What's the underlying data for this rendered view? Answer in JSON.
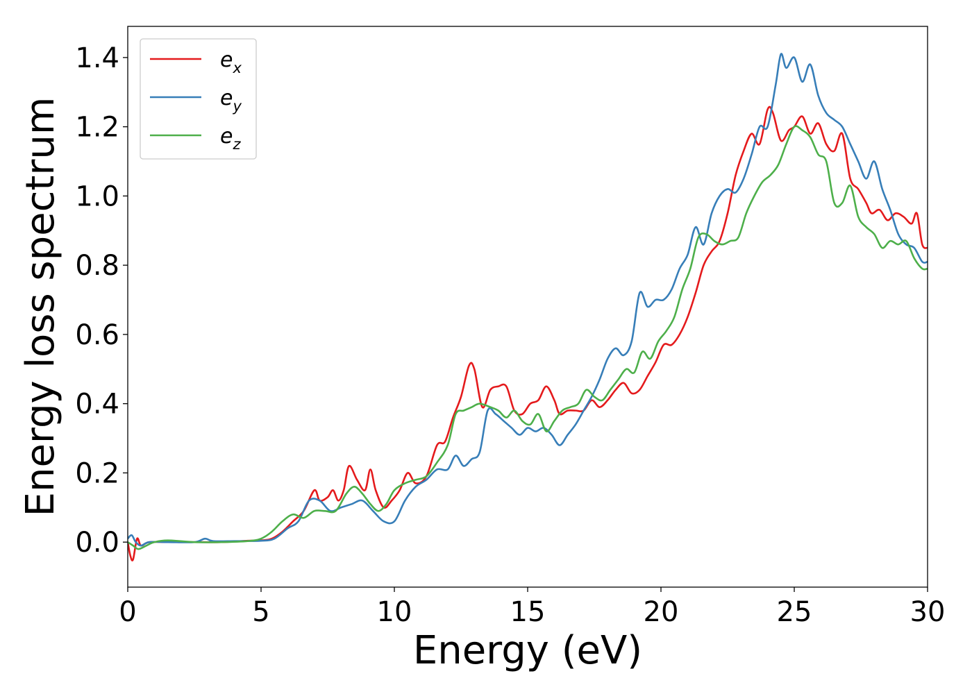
{
  "chart_data": {
    "type": "line",
    "title": "",
    "xlabel": "Energy (eV)",
    "ylabel": "Energy loss spectrum",
    "xlim": [
      0,
      30
    ],
    "ylim": [
      -0.13,
      1.49
    ],
    "xticks": [
      0,
      5,
      10,
      15,
      20,
      25,
      30
    ],
    "xtick_labels": [
      "0",
      "5",
      "10",
      "15",
      "20",
      "25",
      "30"
    ],
    "yticks": [
      0.0,
      0.2,
      0.4,
      0.6,
      0.8,
      1.0,
      1.2,
      1.4
    ],
    "ytick_labels": [
      "0.0",
      "0.2",
      "0.4",
      "0.6",
      "0.8",
      "1.0",
      "1.2",
      "1.4"
    ],
    "grid": false,
    "legend_position": "top-left",
    "series": [
      {
        "name": "e_x",
        "label_main": "e",
        "label_sub": "x",
        "color": "#e41a1c",
        "points": [
          [
            0,
            0.0
          ],
          [
            0.1,
            -0.04
          ],
          [
            0.2,
            -0.05
          ],
          [
            0.35,
            0.01
          ],
          [
            0.5,
            -0.01
          ],
          [
            0.8,
            0.0
          ],
          [
            1.5,
            0.0
          ],
          [
            2.5,
            0.0
          ],
          [
            3.5,
            0.0
          ],
          [
            4.5,
            0.004
          ],
          [
            5.0,
            0.005
          ],
          [
            5.4,
            0.01
          ],
          [
            5.8,
            0.03
          ],
          [
            6.2,
            0.06
          ],
          [
            6.6,
            0.09
          ],
          [
            7.0,
            0.15
          ],
          [
            7.2,
            0.12
          ],
          [
            7.5,
            0.13
          ],
          [
            7.7,
            0.15
          ],
          [
            7.9,
            0.12
          ],
          [
            8.1,
            0.15
          ],
          [
            8.3,
            0.22
          ],
          [
            8.6,
            0.18
          ],
          [
            8.9,
            0.15
          ],
          [
            9.1,
            0.21
          ],
          [
            9.3,
            0.15
          ],
          [
            9.6,
            0.1
          ],
          [
            9.9,
            0.12
          ],
          [
            10.2,
            0.15
          ],
          [
            10.5,
            0.2
          ],
          [
            10.8,
            0.17
          ],
          [
            11.2,
            0.19
          ],
          [
            11.6,
            0.28
          ],
          [
            11.9,
            0.29
          ],
          [
            12.2,
            0.36
          ],
          [
            12.5,
            0.42
          ],
          [
            12.8,
            0.51
          ],
          [
            13.0,
            0.5
          ],
          [
            13.3,
            0.39
          ],
          [
            13.6,
            0.44
          ],
          [
            13.9,
            0.45
          ],
          [
            14.2,
            0.45
          ],
          [
            14.5,
            0.38
          ],
          [
            14.8,
            0.37
          ],
          [
            15.1,
            0.4
          ],
          [
            15.4,
            0.41
          ],
          [
            15.7,
            0.45
          ],
          [
            16.0,
            0.41
          ],
          [
            16.2,
            0.37
          ],
          [
            16.5,
            0.38
          ],
          [
            16.8,
            0.38
          ],
          [
            17.1,
            0.38
          ],
          [
            17.4,
            0.41
          ],
          [
            17.7,
            0.39
          ],
          [
            18.0,
            0.41
          ],
          [
            18.3,
            0.44
          ],
          [
            18.6,
            0.46
          ],
          [
            18.9,
            0.43
          ],
          [
            19.2,
            0.44
          ],
          [
            19.5,
            0.48
          ],
          [
            19.8,
            0.52
          ],
          [
            20.1,
            0.57
          ],
          [
            20.4,
            0.57
          ],
          [
            20.7,
            0.6
          ],
          [
            21.0,
            0.65
          ],
          [
            21.3,
            0.72
          ],
          [
            21.6,
            0.8
          ],
          [
            21.9,
            0.84
          ],
          [
            22.2,
            0.87
          ],
          [
            22.5,
            0.95
          ],
          [
            22.8,
            1.06
          ],
          [
            23.1,
            1.13
          ],
          [
            23.4,
            1.18
          ],
          [
            23.7,
            1.15
          ],
          [
            24.0,
            1.25
          ],
          [
            24.2,
            1.24
          ],
          [
            24.5,
            1.16
          ],
          [
            24.8,
            1.19
          ],
          [
            25.0,
            1.2
          ],
          [
            25.3,
            1.23
          ],
          [
            25.6,
            1.18
          ],
          [
            25.9,
            1.21
          ],
          [
            26.2,
            1.15
          ],
          [
            26.5,
            1.13
          ],
          [
            26.8,
            1.18
          ],
          [
            27.1,
            1.05
          ],
          [
            27.4,
            1.02
          ],
          [
            27.7,
            0.98
          ],
          [
            27.9,
            0.95
          ],
          [
            28.2,
            0.96
          ],
          [
            28.5,
            0.93
          ],
          [
            28.8,
            0.95
          ],
          [
            29.1,
            0.94
          ],
          [
            29.4,
            0.92
          ],
          [
            29.6,
            0.95
          ],
          [
            29.8,
            0.86
          ],
          [
            30.0,
            0.85
          ]
        ]
      },
      {
        "name": "e_y",
        "label_main": "e",
        "label_sub": "y",
        "color": "#377eb8",
        "points": [
          [
            0,
            0.01
          ],
          [
            0.15,
            0.02
          ],
          [
            0.3,
            0.0
          ],
          [
            0.5,
            -0.01
          ],
          [
            0.8,
            0.0
          ],
          [
            1.5,
            0.0
          ],
          [
            2.5,
            0.0
          ],
          [
            2.9,
            0.01
          ],
          [
            3.2,
            0.003
          ],
          [
            4.0,
            0.003
          ],
          [
            5.0,
            0.004
          ],
          [
            5.5,
            0.01
          ],
          [
            6.0,
            0.04
          ],
          [
            6.4,
            0.06
          ],
          [
            6.8,
            0.12
          ],
          [
            7.2,
            0.12
          ],
          [
            7.6,
            0.09
          ],
          [
            8.0,
            0.1
          ],
          [
            8.4,
            0.11
          ],
          [
            8.8,
            0.12
          ],
          [
            9.2,
            0.09
          ],
          [
            9.6,
            0.06
          ],
          [
            10.0,
            0.06
          ],
          [
            10.4,
            0.12
          ],
          [
            10.8,
            0.16
          ],
          [
            11.2,
            0.18
          ],
          [
            11.6,
            0.21
          ],
          [
            12.0,
            0.21
          ],
          [
            12.3,
            0.25
          ],
          [
            12.6,
            0.22
          ],
          [
            12.9,
            0.24
          ],
          [
            13.2,
            0.26
          ],
          [
            13.5,
            0.38
          ],
          [
            13.8,
            0.37
          ],
          [
            14.1,
            0.35
          ],
          [
            14.4,
            0.33
          ],
          [
            14.7,
            0.31
          ],
          [
            15.0,
            0.33
          ],
          [
            15.3,
            0.32
          ],
          [
            15.6,
            0.33
          ],
          [
            15.9,
            0.31
          ],
          [
            16.2,
            0.28
          ],
          [
            16.5,
            0.31
          ],
          [
            16.8,
            0.34
          ],
          [
            17.1,
            0.38
          ],
          [
            17.4,
            0.42
          ],
          [
            17.7,
            0.47
          ],
          [
            18.0,
            0.53
          ],
          [
            18.3,
            0.56
          ],
          [
            18.6,
            0.54
          ],
          [
            18.9,
            0.58
          ],
          [
            19.2,
            0.72
          ],
          [
            19.5,
            0.68
          ],
          [
            19.8,
            0.7
          ],
          [
            20.1,
            0.7
          ],
          [
            20.4,
            0.73
          ],
          [
            20.7,
            0.79
          ],
          [
            21.0,
            0.83
          ],
          [
            21.3,
            0.91
          ],
          [
            21.6,
            0.86
          ],
          [
            21.9,
            0.95
          ],
          [
            22.2,
            1.0
          ],
          [
            22.5,
            1.02
          ],
          [
            22.8,
            1.01
          ],
          [
            23.1,
            1.05
          ],
          [
            23.4,
            1.12
          ],
          [
            23.7,
            1.2
          ],
          [
            24.0,
            1.2
          ],
          [
            24.3,
            1.32
          ],
          [
            24.5,
            1.41
          ],
          [
            24.7,
            1.37
          ],
          [
            25.0,
            1.4
          ],
          [
            25.3,
            1.33
          ],
          [
            25.6,
            1.38
          ],
          [
            25.9,
            1.29
          ],
          [
            26.2,
            1.24
          ],
          [
            26.5,
            1.22
          ],
          [
            26.8,
            1.2
          ],
          [
            27.1,
            1.15
          ],
          [
            27.4,
            1.1
          ],
          [
            27.7,
            1.05
          ],
          [
            28.0,
            1.1
          ],
          [
            28.3,
            1.02
          ],
          [
            28.6,
            0.96
          ],
          [
            28.9,
            0.89
          ],
          [
            29.2,
            0.86
          ],
          [
            29.5,
            0.85
          ],
          [
            29.8,
            0.81
          ],
          [
            30.0,
            0.81
          ]
        ]
      },
      {
        "name": "e_z",
        "label_main": "e",
        "label_sub": "z",
        "color": "#4daf4a",
        "points": [
          [
            0,
            0.0
          ],
          [
            0.2,
            -0.01
          ],
          [
            0.4,
            -0.02
          ],
          [
            0.7,
            -0.01
          ],
          [
            1.0,
            0.0
          ],
          [
            1.5,
            0.005
          ],
          [
            2.5,
            0.0
          ],
          [
            3.5,
            0.0
          ],
          [
            4.5,
            0.003
          ],
          [
            5.0,
            0.01
          ],
          [
            5.4,
            0.03
          ],
          [
            5.8,
            0.06
          ],
          [
            6.2,
            0.08
          ],
          [
            6.6,
            0.07
          ],
          [
            7.0,
            0.09
          ],
          [
            7.4,
            0.09
          ],
          [
            7.8,
            0.09
          ],
          [
            8.2,
            0.14
          ],
          [
            8.5,
            0.16
          ],
          [
            8.8,
            0.14
          ],
          [
            9.1,
            0.11
          ],
          [
            9.4,
            0.09
          ],
          [
            9.7,
            0.11
          ],
          [
            10.0,
            0.15
          ],
          [
            10.4,
            0.17
          ],
          [
            10.8,
            0.18
          ],
          [
            11.2,
            0.19
          ],
          [
            11.6,
            0.23
          ],
          [
            12.0,
            0.28
          ],
          [
            12.3,
            0.37
          ],
          [
            12.6,
            0.38
          ],
          [
            12.9,
            0.39
          ],
          [
            13.2,
            0.4
          ],
          [
            13.6,
            0.39
          ],
          [
            13.9,
            0.38
          ],
          [
            14.2,
            0.36
          ],
          [
            14.5,
            0.38
          ],
          [
            14.8,
            0.35
          ],
          [
            15.1,
            0.34
          ],
          [
            15.4,
            0.37
          ],
          [
            15.7,
            0.32
          ],
          [
            16.0,
            0.35
          ],
          [
            16.3,
            0.38
          ],
          [
            16.6,
            0.39
          ],
          [
            16.9,
            0.4
          ],
          [
            17.2,
            0.44
          ],
          [
            17.5,
            0.42
          ],
          [
            17.8,
            0.41
          ],
          [
            18.1,
            0.44
          ],
          [
            18.4,
            0.47
          ],
          [
            18.7,
            0.5
          ],
          [
            19.0,
            0.49
          ],
          [
            19.3,
            0.55
          ],
          [
            19.6,
            0.53
          ],
          [
            19.9,
            0.58
          ],
          [
            20.2,
            0.61
          ],
          [
            20.5,
            0.65
          ],
          [
            20.8,
            0.73
          ],
          [
            21.1,
            0.79
          ],
          [
            21.4,
            0.88
          ],
          [
            21.7,
            0.89
          ],
          [
            22.0,
            0.87
          ],
          [
            22.3,
            0.86
          ],
          [
            22.6,
            0.87
          ],
          [
            22.9,
            0.88
          ],
          [
            23.2,
            0.95
          ],
          [
            23.5,
            1.0
          ],
          [
            23.8,
            1.04
          ],
          [
            24.1,
            1.06
          ],
          [
            24.4,
            1.09
          ],
          [
            24.7,
            1.15
          ],
          [
            25.0,
            1.2
          ],
          [
            25.3,
            1.19
          ],
          [
            25.6,
            1.17
          ],
          [
            25.9,
            1.12
          ],
          [
            26.2,
            1.1
          ],
          [
            26.5,
            0.98
          ],
          [
            26.8,
            0.98
          ],
          [
            27.1,
            1.03
          ],
          [
            27.4,
            0.94
          ],
          [
            27.7,
            0.91
          ],
          [
            28.0,
            0.89
          ],
          [
            28.3,
            0.85
          ],
          [
            28.6,
            0.87
          ],
          [
            28.9,
            0.86
          ],
          [
            29.2,
            0.87
          ],
          [
            29.5,
            0.82
          ],
          [
            29.8,
            0.79
          ],
          [
            30.0,
            0.79
          ]
        ]
      }
    ]
  }
}
